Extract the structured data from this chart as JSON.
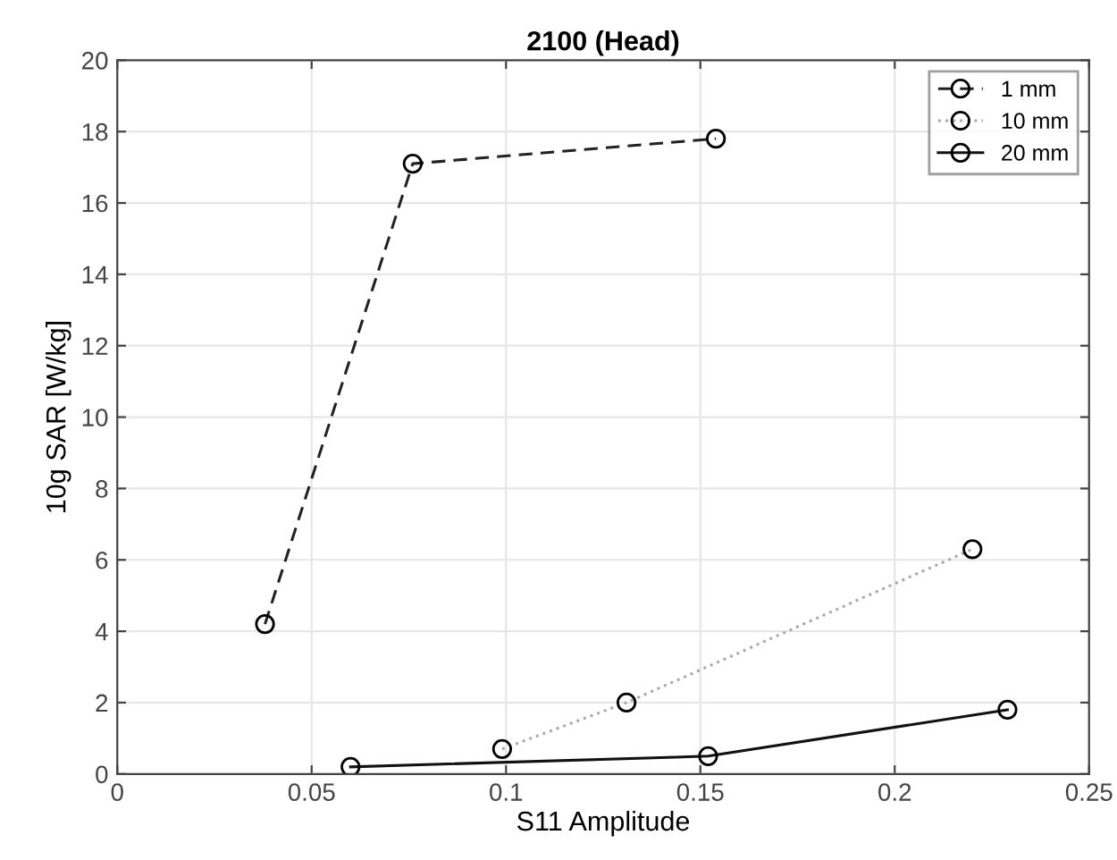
{
  "chart_data": {
    "type": "line",
    "title": "2100 (Head)",
    "xlabel": "S11 Amplitude",
    "ylabel": "10g SAR [W/kg]",
    "xlim": [
      0,
      0.25
    ],
    "xticks": [
      0,
      0.05,
      0.1,
      0.15,
      0.2,
      0.25
    ],
    "ylim": [
      0,
      20
    ],
    "yticks": [
      0,
      2,
      4,
      6,
      8,
      10,
      12,
      14,
      16,
      18,
      20
    ],
    "grid": true,
    "legend": "top right",
    "marker": "circle",
    "series": [
      {
        "name": "1 mm",
        "color": "#222222",
        "line_style": "dashed",
        "x": [
          0.038,
          0.076,
          0.154
        ],
        "values": [
          4.2,
          17.1,
          17.8
        ]
      },
      {
        "name": "10 mm",
        "color": "#aaaaaa",
        "line_style": "dotted",
        "x": [
          0.099,
          0.131,
          0.22
        ],
        "values": [
          0.7,
          2.0,
          6.3
        ]
      },
      {
        "name": "20 mm",
        "color": "#111111",
        "line_style": "solid",
        "x": [
          0.06,
          0.152,
          0.229
        ],
        "values": [
          0.2,
          0.5,
          1.8
        ]
      }
    ]
  }
}
